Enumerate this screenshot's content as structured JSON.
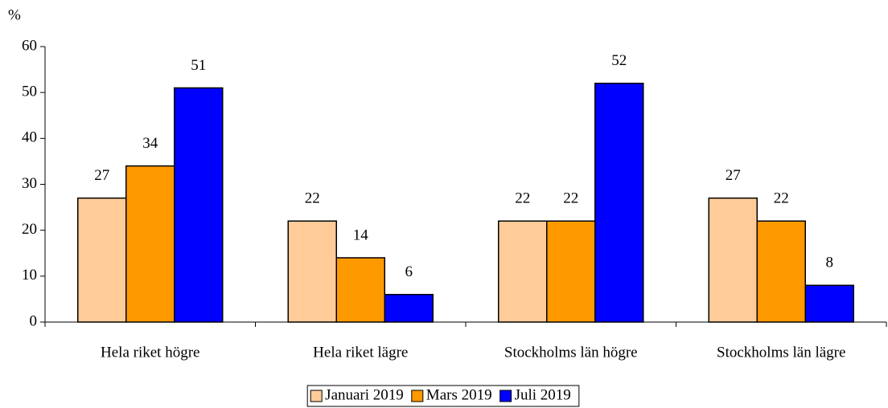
{
  "chart_data": {
    "type": "bar",
    "y_label": "%",
    "categories": [
      "Hela riket högre",
      "Hela riket lägre",
      "Stockholms län högre",
      "Stockholms län lägre"
    ],
    "series": [
      {
        "name": "Januari 2019",
        "color": "#ffcc99",
        "values": [
          27,
          22,
          22,
          27
        ]
      },
      {
        "name": "Mars 2019",
        "color": "#ff9900",
        "values": [
          34,
          14,
          22,
          22
        ]
      },
      {
        "name": "Juli 2019",
        "color": "#0000ff",
        "values": [
          51,
          6,
          52,
          8
        ]
      }
    ],
    "ylim": [
      0,
      60
    ],
    "yticks": [
      0,
      10,
      20,
      30,
      40,
      50,
      60
    ],
    "grid": false,
    "legend": "bottom"
  }
}
